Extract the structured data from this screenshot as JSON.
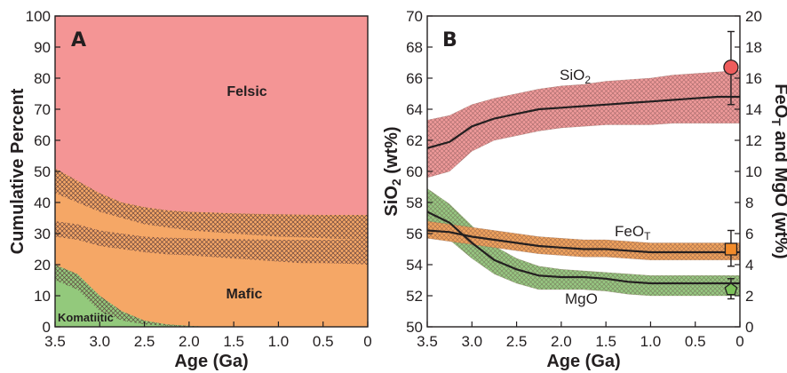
{
  "colors": {
    "felsic": "#f49595",
    "intermediate": "#f3a96e",
    "mafic": "#f5a766",
    "komatiitic": "#93c97c",
    "sio2_band": "#ef9a9a",
    "feot_band": "#f0a35e",
    "mgo_band": "#97c882",
    "hatch": "#6b3f3f",
    "line": "#231f20"
  },
  "chart_data": [
    {
      "panel_label": "A",
      "type": "area",
      "xlabel": "Age (Ga)",
      "ylabel": "Cumulative Percent",
      "xlim": [
        3.5,
        0
      ],
      "ylim": [
        0,
        100
      ],
      "x_ticks": [
        "3.5",
        "3.0",
        "2.5",
        "2.0",
        "1.5",
        "1.0",
        "0.5",
        "0"
      ],
      "y_ticks": [
        "0",
        "10",
        "20",
        "30",
        "40",
        "50",
        "60",
        "70",
        "80",
        "90",
        "100"
      ],
      "region_labels": {
        "felsic": "Felsic",
        "mafic": "Mafic",
        "komatiitic": "Komatiitic"
      },
      "x": [
        3.5,
        3.25,
        3.0,
        2.75,
        2.5,
        2.25,
        2.0,
        1.75,
        1.5,
        1.25,
        1.0,
        0.75,
        0.5,
        0.25,
        0
      ],
      "komatiitic_lower": [
        15,
        12,
        5,
        2,
        0.8,
        0.3,
        0,
        0,
        0,
        0,
        0,
        0,
        0,
        0,
        0
      ],
      "komatiitic_upper": [
        20,
        17,
        10,
        5,
        2,
        0.8,
        0.3,
        0,
        0,
        0,
        0,
        0,
        0,
        0,
        0
      ],
      "mafic_upper": [
        34,
        33,
        31,
        30,
        29,
        28.7,
        28.5,
        28.3,
        28.2,
        28.1,
        28,
        28,
        28,
        28,
        28
      ],
      "mafic_lower": [
        29,
        28,
        26,
        25,
        24,
        23.3,
        23,
        22.5,
        22,
        21.5,
        21,
        20.5,
        20.5,
        20.3,
        20
      ],
      "intermediate_upper": [
        51,
        47,
        43,
        40,
        38.5,
        37.5,
        37,
        36.8,
        36.5,
        36.3,
        36.2,
        36.1,
        36,
        36,
        36
      ],
      "intermediate_lower": [
        43,
        40,
        37,
        35,
        33,
        32,
        31,
        30.5,
        30,
        29.5,
        29,
        28.8,
        28.5,
        28.2,
        28
      ]
    },
    {
      "panel_label": "B",
      "type": "line",
      "xlabel": "Age (Ga)",
      "ylabel_left": "SiO2 (wt%)",
      "ylabel_right": "FeOT and MgO (wt%)",
      "xlim": [
        3.5,
        0
      ],
      "ylim_left": [
        50,
        70
      ],
      "ylim_right": [
        0,
        20
      ],
      "x_ticks": [
        "3.5",
        "3.0",
        "2.5",
        "2.0",
        "1.5",
        "1.0",
        "0.5",
        "0"
      ],
      "y_ticks_left": [
        "50",
        "52",
        "54",
        "56",
        "58",
        "60",
        "62",
        "64",
        "66",
        "68",
        "70"
      ],
      "y_ticks_right": [
        "0",
        "2",
        "4",
        "6",
        "8",
        "10",
        "12",
        "14",
        "16",
        "18",
        "20"
      ],
      "x": [
        3.5,
        3.25,
        3.0,
        2.75,
        2.5,
        2.25,
        2.0,
        1.75,
        1.5,
        1.25,
        1.0,
        0.75,
        0.5,
        0.25,
        0
      ],
      "series": [
        {
          "name": "SiO2",
          "axis": "left",
          "values": [
            61.5,
            61.9,
            62.9,
            63.4,
            63.7,
            64.0,
            64.1,
            64.2,
            64.3,
            64.4,
            64.5,
            64.6,
            64.7,
            64.8,
            64.8
          ],
          "upper": [
            63.3,
            63.6,
            64.3,
            64.7,
            65.0,
            65.3,
            65.5,
            65.6,
            65.8,
            65.9,
            66.0,
            66.2,
            66.3,
            66.4,
            66.5
          ],
          "lower": [
            59.6,
            60.0,
            61.3,
            62.0,
            62.3,
            62.6,
            62.8,
            62.9,
            63.0,
            63.0,
            63.0,
            63.1,
            63.1,
            63.1,
            63.1
          ],
          "modern_value": 66.7,
          "modern_error": [
            64.3,
            69.0
          ],
          "modern_marker": "circle"
        },
        {
          "name": "FeOT",
          "axis": "right",
          "values": [
            6.2,
            6.1,
            5.8,
            5.6,
            5.4,
            5.2,
            5.1,
            5.0,
            5.0,
            4.9,
            4.8,
            4.8,
            4.8,
            4.8,
            4.8
          ],
          "upper": [
            6.8,
            6.6,
            6.4,
            6.2,
            6.0,
            5.8,
            5.7,
            5.6,
            5.6,
            5.5,
            5.4,
            5.4,
            5.4,
            5.4,
            5.4
          ],
          "lower": [
            5.7,
            5.5,
            5.3,
            5.1,
            4.9,
            4.7,
            4.6,
            4.5,
            4.5,
            4.4,
            4.3,
            4.3,
            4.3,
            4.3,
            4.3
          ],
          "modern_value": 5.0,
          "modern_error": [
            3.9,
            6.2
          ],
          "modern_marker": "square"
        },
        {
          "name": "MgO",
          "axis": "right",
          "values": [
            7.4,
            6.7,
            5.4,
            4.3,
            3.7,
            3.3,
            3.2,
            3.2,
            3.1,
            2.9,
            2.8,
            2.8,
            2.8,
            2.8,
            2.8
          ],
          "upper": [
            8.9,
            7.9,
            6.5,
            5.2,
            4.4,
            3.9,
            3.7,
            3.6,
            3.5,
            3.4,
            3.3,
            3.3,
            3.3,
            3.3,
            3.3
          ],
          "lower": [
            6.2,
            5.6,
            4.4,
            3.4,
            2.8,
            2.4,
            2.4,
            2.4,
            2.3,
            2.1,
            2.0,
            2.0,
            2.0,
            2.0,
            2.0
          ],
          "modern_value": 2.4,
          "modern_error": [
            1.8,
            3.1
          ],
          "modern_marker": "pentagon"
        }
      ]
    }
  ],
  "labels": {
    "panel_a": "A",
    "panel_b": "B",
    "a_xlabel": "Age (Ga)",
    "a_ylabel": "Cumulative Percent",
    "felsic": "Felsic",
    "mafic": "Mafic",
    "komatiitic": "Komatiitic",
    "b_xlabel": "Age (Ga)",
    "sio2_main": "SiO",
    "sio2_sub": "2",
    "sio2_unit": " (wt%)",
    "feot_main": "FeO",
    "feot_sub": "T",
    "mgo": "MgO",
    "right_main": "FeO",
    "right_sub": "T",
    "right_rest": " and MgO (wt%)"
  }
}
